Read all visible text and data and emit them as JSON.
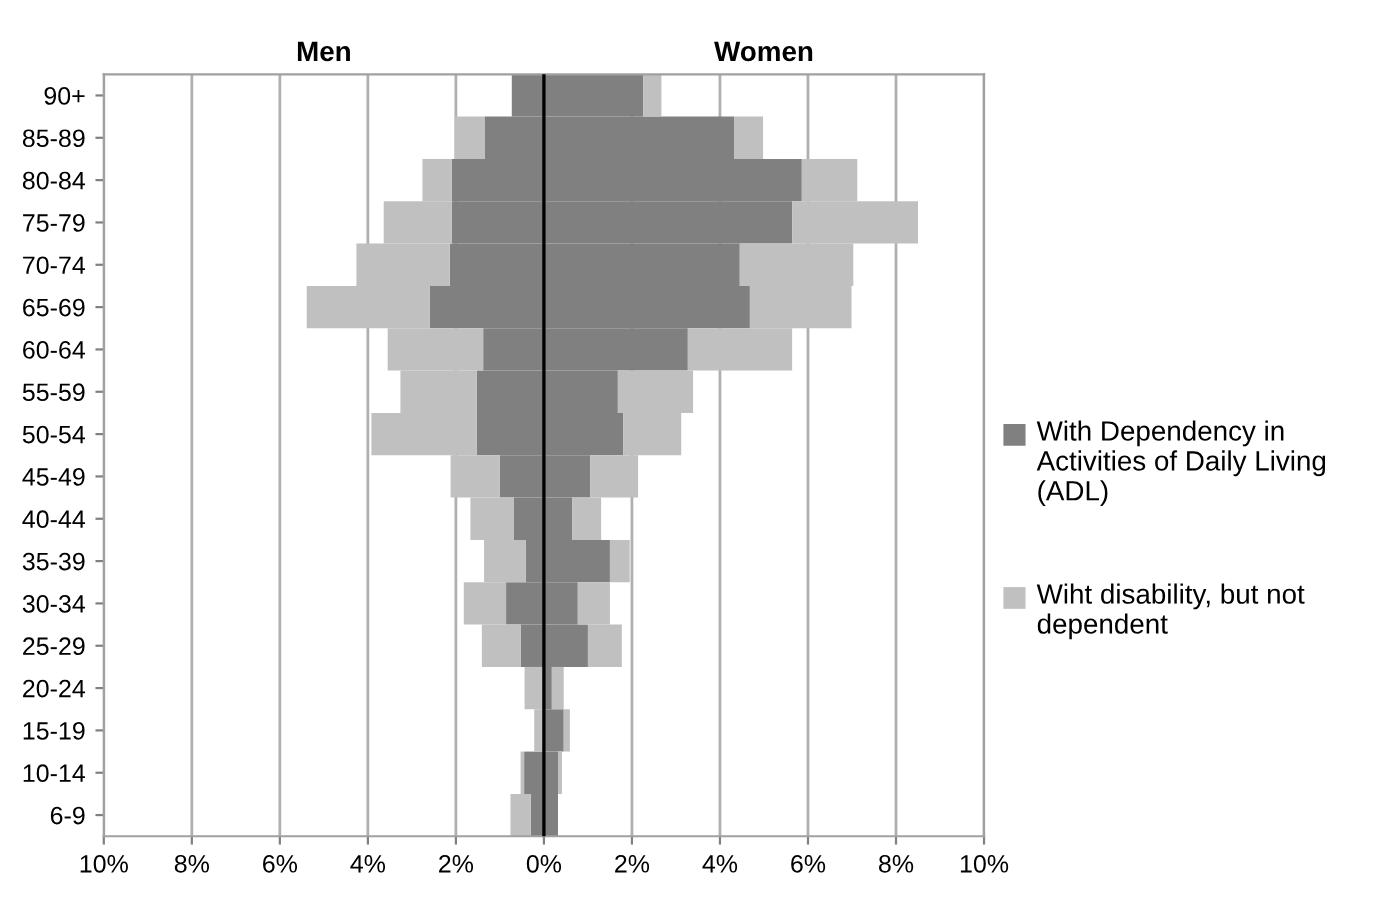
{
  "chart_data": {
    "type": "bar",
    "orientation": "horizontal",
    "stacked": true,
    "categories": [
      "90+",
      "85-89",
      "80-84",
      "75-79",
      "70-74",
      "65-69",
      "60-64",
      "55-59",
      "50-54",
      "45-49",
      "40-44",
      "35-39",
      "30-34",
      "25-29",
      "20-24",
      "15-19",
      "10-14",
      "6-9"
    ],
    "series": [
      {
        "name": "With Dependency in Activities of Daily Living (ADL)",
        "color": "#808080",
        "values": [
          -0.73,
          -1.35,
          -2.09,
          -2.09,
          -2.14,
          -2.59,
          -1.38,
          -1.53,
          -1.53,
          -1.0,
          -0.68,
          -0.41,
          -0.86,
          -0.53,
          null,
          null,
          -0.45,
          -0.3
        ]
      },
      {
        "name": "Wiht disability, but not dependent",
        "color": "#c0c0c0",
        "values": [
          0,
          -0.68,
          -0.67,
          -1.55,
          -2.12,
          -2.8,
          -2.17,
          -1.73,
          -2.39,
          -1.12,
          -0.99,
          -0.95,
          -0.96,
          -0.88,
          -0.44,
          -0.22,
          -0.08,
          -0.46
        ]
      },
      {
        "color": "#808080",
        "values": [
          2.26,
          4.32,
          5.86,
          5.64,
          4.45,
          4.68,
          3.27,
          1.68,
          1.8,
          1.05,
          0.64,
          1.5,
          0.77,
          1.0,
          0.18,
          0.45,
          0.32,
          0.32
        ]
      },
      {
        "color": "#c0c0c0",
        "values": [
          0.41,
          0.66,
          1.26,
          2.86,
          2.58,
          2.31,
          2.37,
          1.71,
          1.32,
          1.09,
          0.66,
          0.45,
          0.73,
          0.77,
          0.27,
          0.14,
          0.09,
          0
        ]
      }
    ],
    "xlim": [
      -10,
      10
    ],
    "xticks": [
      {
        "value": -10,
        "label": "10%"
      },
      {
        "value": -8,
        "label": "8%"
      },
      {
        "value": -6,
        "label": "6%"
      },
      {
        "value": -4,
        "label": "4%"
      },
      {
        "value": -2,
        "label": "2%"
      },
      {
        "value": 0,
        "label": "0%"
      },
      {
        "value": 2,
        "label": "2%"
      },
      {
        "value": 4,
        "label": "4%"
      },
      {
        "value": 6,
        "label": "6%"
      },
      {
        "value": 8,
        "label": "8%"
      },
      {
        "value": 10,
        "label": "10%"
      }
    ],
    "ref_lines": [
      {
        "axis": "x",
        "value": 0,
        "color": "#000000"
      }
    ],
    "annotations": [
      "Men",
      "Women"
    ],
    "grid": "x",
    "legend": "right"
  }
}
